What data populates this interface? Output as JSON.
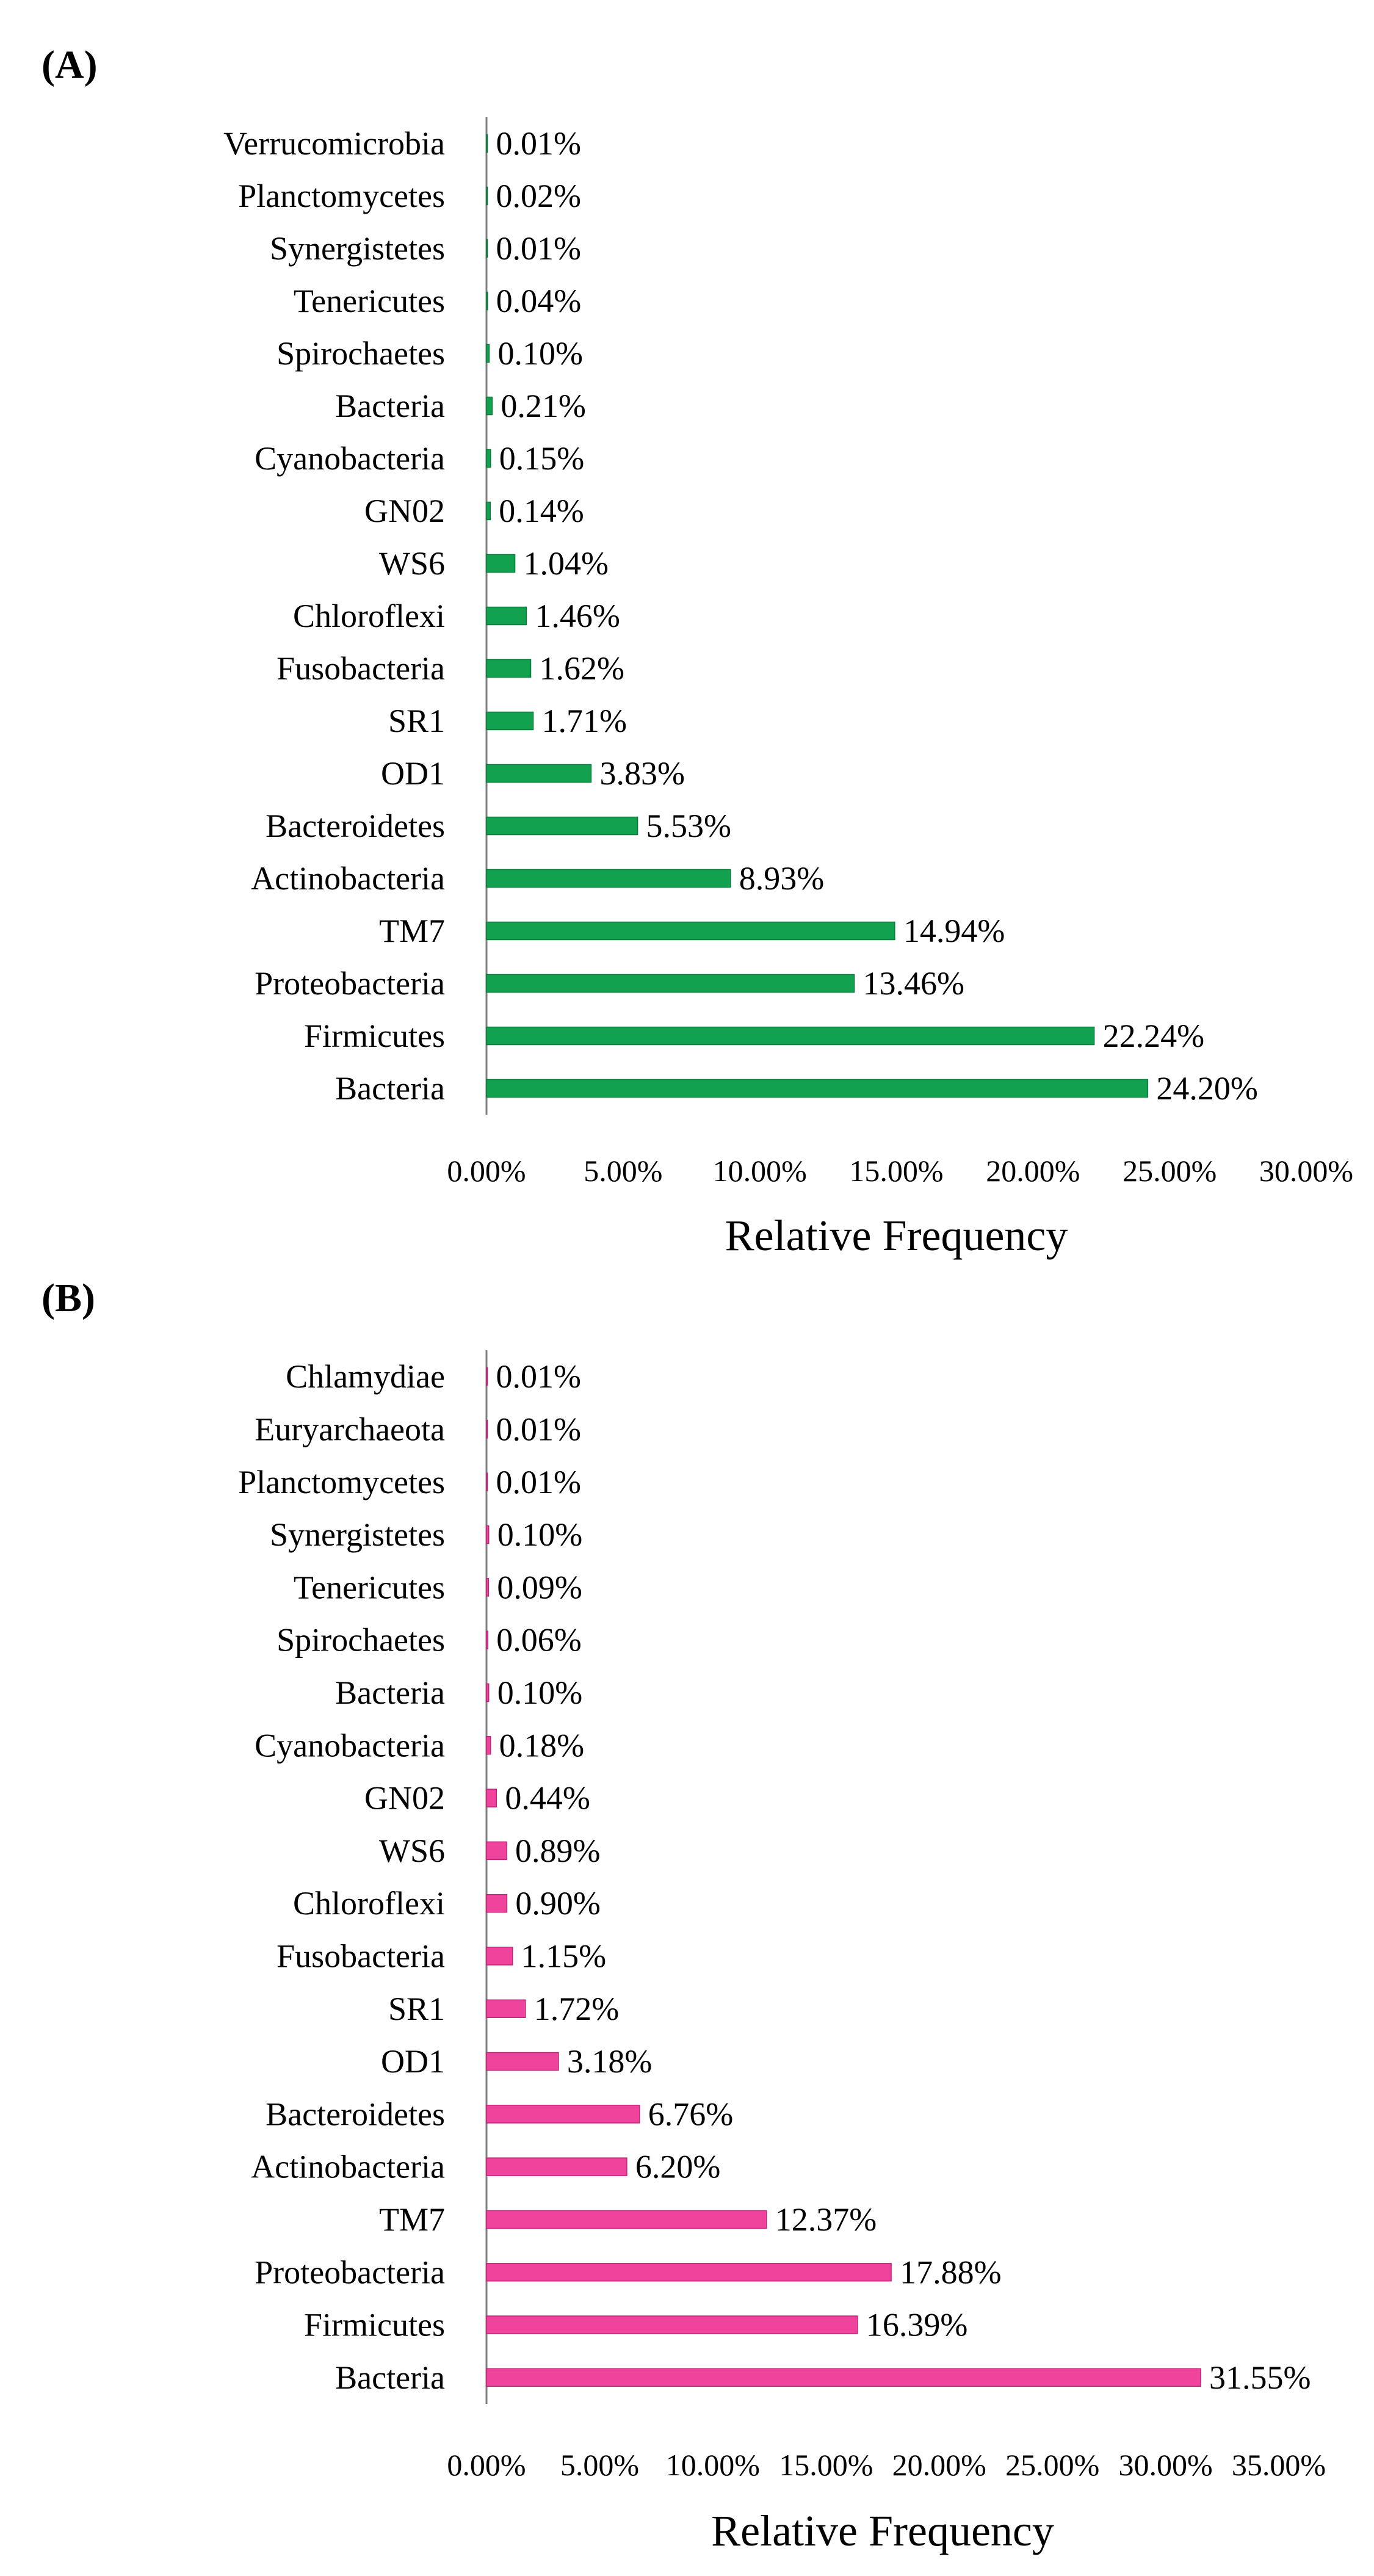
{
  "chart_data": [
    {
      "type": "bar",
      "orientation": "horizontal",
      "panel_label": "(A)",
      "color": "#12A14F",
      "edge_color": "#0B7A3A",
      "categories": [
        "Verrucomicrobia",
        "Planctomycetes",
        "Synergistetes",
        "Tenericutes",
        "Spirochaetes",
        "Bacteria",
        "Cyanobacteria",
        "GN02",
        "WS6",
        "Chloroflexi",
        "Fusobacteria",
        "SR1",
        "OD1",
        "Bacteroidetes",
        "Actinobacteria",
        "TM7",
        "Proteobacteria",
        "Firmicutes",
        "Bacteria"
      ],
      "values": [
        0.01,
        0.02,
        0.01,
        0.04,
        0.1,
        0.21,
        0.15,
        0.14,
        1.04,
        1.46,
        1.62,
        1.71,
        3.83,
        5.53,
        8.93,
        14.94,
        13.46,
        22.24,
        24.2
      ],
      "value_labels": [
        "0.01%",
        "0.02%",
        "0.01%",
        "0.04%",
        "0.10%",
        "0.21%",
        "0.15%",
        "0.14%",
        "1.04%",
        "1.46%",
        "1.62%",
        "1.71%",
        "3.83%",
        "5.53%",
        "8.93%",
        "14.94%",
        "13.46%",
        "22.24%",
        "24.20%"
      ],
      "xlim": [
        0,
        30
      ],
      "xticks": [
        "0.00%",
        "5.00%",
        "10.00%",
        "15.00%",
        "20.00%",
        "25.00%",
        "30.00%"
      ],
      "xlabel": "Relative Frequency",
      "ylabel": "",
      "grid": false
    },
    {
      "type": "bar",
      "orientation": "horizontal",
      "panel_label": "(B)",
      "color": "#F0439B",
      "edge_color": "#C0237A",
      "categories": [
        "Chlamydiae",
        "Euryarchaeota",
        "Planctomycetes",
        "Synergistetes",
        "Tenericutes",
        "Spirochaetes",
        "Bacteria",
        "Cyanobacteria",
        "GN02",
        "WS6",
        "Chloroflexi",
        "Fusobacteria",
        "SR1",
        "OD1",
        "Bacteroidetes",
        "Actinobacteria",
        "TM7",
        "Proteobacteria",
        "Firmicutes",
        "Bacteria"
      ],
      "values": [
        0.01,
        0.01,
        0.01,
        0.1,
        0.09,
        0.06,
        0.1,
        0.18,
        0.44,
        0.89,
        0.9,
        1.15,
        1.72,
        3.18,
        6.76,
        6.2,
        12.37,
        17.88,
        16.39,
        31.55
      ],
      "value_labels": [
        "0.01%",
        "0.01%",
        "0.01%",
        "0.10%",
        "0.09%",
        "0.06%",
        "0.10%",
        "0.18%",
        "0.44%",
        "0.89%",
        "0.90%",
        "1.15%",
        "1.72%",
        "3.18%",
        "6.76%",
        "6.20%",
        "12.37%",
        "17.88%",
        "16.39%",
        "31.55%"
      ],
      "xlim": [
        0,
        35
      ],
      "xticks": [
        "0.00%",
        "5.00%",
        "10.00%",
        "15.00%",
        "20.00%",
        "25.00%",
        "30.00%",
        "35.00%"
      ],
      "xlabel": "Relative Frequency",
      "ylabel": "",
      "grid": false
    }
  ]
}
